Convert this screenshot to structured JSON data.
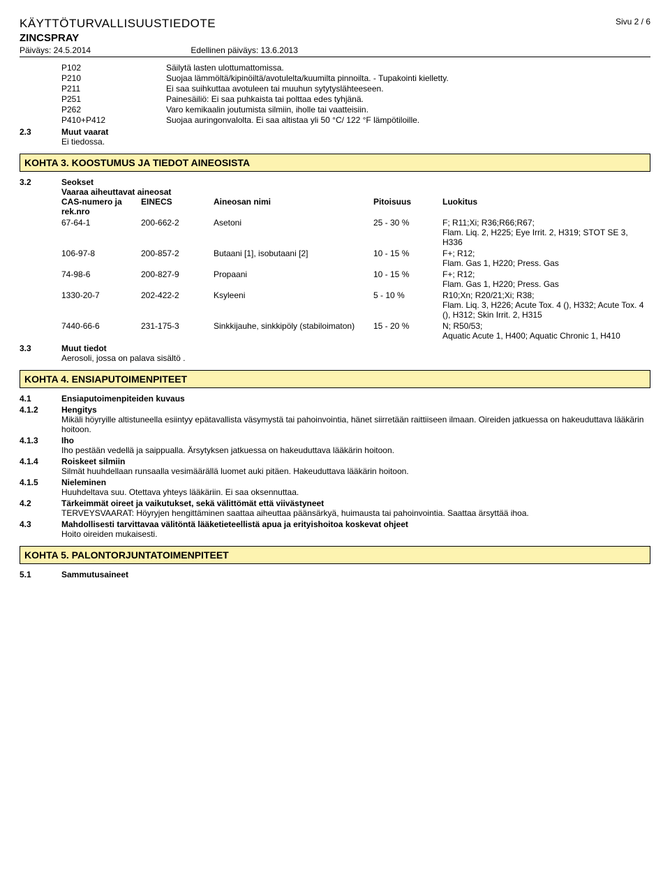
{
  "head": {
    "doc_title": "KÄYTTÖTURVALLISUUSTIEDOTE",
    "page_label": "Sivu 2 / 6",
    "product": "ZINCSPRAY",
    "date_label": "Päiväys: 24.5.2014",
    "prev_date_label": "Edellinen päiväys: 13.6.2013"
  },
  "pstatements": [
    {
      "code": "P102",
      "text": "Säilytä lasten ulottumattomissa."
    },
    {
      "code": "P210",
      "text": "Suojaa lämmöltä/kipinöiltä/avotulelta/kuumilta pinnoilta. - Tupakointi kielletty."
    },
    {
      "code": "P211",
      "text": "Ei saa suihkuttaa avotuleen tai muuhun sytytyslähteeseen."
    },
    {
      "code": "P251",
      "text": "Painesäiliö: Ei saa puhkaista tai polttaa edes tyhjänä."
    },
    {
      "code": "P262",
      "text": "Varo kemikaalin joutumista silmiin, iholle tai vaatteisiin."
    },
    {
      "code": "P410+P412",
      "text": "Suojaa auringonvalolta. Ei saa altistaa yli 50 °C/ 122 °F lämpötiloille."
    }
  ],
  "s23": {
    "num": "2.3",
    "label": "Muut vaarat",
    "body": "Ei tiedossa."
  },
  "k3": {
    "title": "KOHTA 3. KOOSTUMUS JA TIEDOT AINEOSISTA",
    "s32_num": "3.2",
    "s32_label": "Seokset",
    "s32_sub": "Vaaraa aiheuttavat aineosat",
    "headers": {
      "cas": "CAS-numero ja rek.nro",
      "einecs": "EINECS",
      "name": "Aineosan nimi",
      "pit": "Pitoisuus",
      "luo": "Luokitus"
    },
    "rows": [
      {
        "cas": "67-64-1",
        "einecs": "200-662-2",
        "name": "Asetoni",
        "pit": "25 - 30 %",
        "luo": "F; R11;Xi; R36;R66;R67;\nFlam. Liq. 2, H225; Eye Irrit. 2, H319; STOT SE 3, H336"
      },
      {
        "cas": "106-97-8",
        "einecs": "200-857-2",
        "name": "Butaani [1], isobutaani [2]",
        "pit": "10 - 15 %",
        "luo": "F+; R12;\nFlam. Gas 1, H220; Press. Gas"
      },
      {
        "cas": "74-98-6",
        "einecs": "200-827-9",
        "name": "Propaani",
        "pit": "10 - 15 %",
        "luo": "F+; R12;\nFlam. Gas 1, H220; Press. Gas"
      },
      {
        "cas": "1330-20-7",
        "einecs": "202-422-2",
        "name": "Ksyleeni",
        "pit": "5 - 10 %",
        "luo": "R10;Xn; R20/21;Xi; R38;\nFlam. Liq. 3, H226; Acute Tox. 4 (), H332; Acute Tox. 4 (), H312; Skin Irrit. 2, H315"
      },
      {
        "cas": "7440-66-6",
        "einecs": "231-175-3",
        "name": "Sinkkijauhe, sinkkipöly (stabiloimaton)",
        "pit": "15 - 20 %",
        "luo": "N; R50/53;\nAquatic Acute 1, H400; Aquatic Chronic 1, H410"
      }
    ],
    "s33_num": "3.3",
    "s33_label": "Muut tiedot",
    "s33_body": "Aerosoli, jossa on palava sisältö ."
  },
  "k4": {
    "title": "KOHTA 4. ENSIAPUTOIMENPITEET",
    "rows": [
      {
        "num": "4.1",
        "label": "Ensiaputoimenpiteiden kuvaus",
        "body": ""
      },
      {
        "num": "4.1.2",
        "label": "Hengitys",
        "body": "Mikäli höyryille altistuneella esiintyy epätavallista väsymystä tai pahoinvointia, hänet siirretään raittiiseen ilmaan. Oireiden jatkuessa on hakeuduttava lääkärin hoitoon."
      },
      {
        "num": "4.1.3",
        "label": "Iho",
        "body": "Iho pestään vedellä ja saippualla. Ärsytyksen jatkuessa on hakeuduttava lääkärin hoitoon."
      },
      {
        "num": "4.1.4",
        "label": "Roiskeet silmiin",
        "body": "Silmät huuhdellaan runsaalla vesimäärällä luomet auki pitäen. Hakeuduttava lääkärin hoitoon."
      },
      {
        "num": "4.1.5",
        "label": "Nieleminen",
        "body": "Huuhdeltava suu. Otettava yhteys lääkäriin.  Ei saa oksennuttaa."
      },
      {
        "num": "4.2",
        "label": "Tärkeimmät oireet ja vaikutukset, sekä välittömät että viivästyneet",
        "body": "TERVEYSVAARAT: Höyryjen hengittäminen saattaa aiheuttaa päänsärkyä, huimausta tai pahoinvointia. Saattaa ärsyttää ihoa."
      },
      {
        "num": "4.3",
        "label": "Mahdollisesti tarvittavaa välitöntä lääketieteellistä apua ja erityishoitoa koskevat ohjeet",
        "body": "Hoito oireiden mukaisesti."
      }
    ]
  },
  "k5": {
    "title": "KOHTA 5. PALONTORJUNTATOIMENPITEET",
    "s51_num": "5.1",
    "s51_label": "Sammutusaineet"
  }
}
